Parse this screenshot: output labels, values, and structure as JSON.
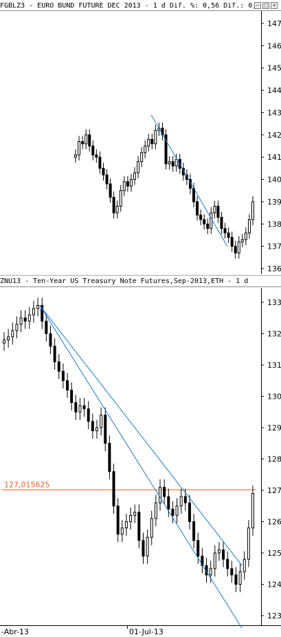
{
  "window": {
    "buttons": [
      "–",
      "□",
      "×"
    ]
  },
  "panes": [
    {
      "title": "FGBLZ3 - EURO BUND FUTURE  DEC 2013 -  1 d Dif. %: 0,56 Dif.: 0,",
      "y_ticks": [
        "147",
        "146",
        "145",
        "144",
        "143",
        "142",
        "141",
        "140",
        "139",
        "138",
        "137",
        "136"
      ],
      "line_colors": {
        "candle": "#000000",
        "trend": "#1f77c8"
      }
    },
    {
      "title": "ZNU13 - Ten-Year US Treasury Note Futures,Sep-2013,ETH -  1 d",
      "y_ticks": [
        "133",
        "132",
        "131",
        "130",
        "129",
        "128",
        "127",
        "126",
        "125",
        "124",
        "123"
      ],
      "hline_label": "127,015625",
      "hline_color": "#e8601c",
      "line_colors": {
        "candle": "#000000",
        "trend": "#1f77c8"
      }
    }
  ],
  "x_labels": [
    "-Abr-13",
    "01-Jul-13"
  ],
  "chart_data": [
    {
      "type": "candlestick",
      "title": "FGBLZ3 - EURO BUND FUTURE  DEC 2013 -  1 d Dif. %: 0,56 Dif.: 0,",
      "ylim": [
        136,
        147.4
      ],
      "ticks": [
        136,
        137,
        138,
        139,
        140,
        141,
        142,
        143,
        144,
        145,
        146,
        147
      ],
      "closes": [
        141.1,
        141.7,
        141.6,
        142.0,
        141.5,
        141.1,
        141.0,
        140.5,
        140.2,
        139.8,
        139.2,
        138.5,
        138.8,
        139.5,
        139.9,
        139.7,
        140.0,
        140.3,
        140.8,
        141.2,
        141.5,
        141.8,
        141.6,
        142.2,
        142.3,
        142.0,
        140.7,
        140.8,
        140.6,
        140.9,
        140.5,
        140.2,
        140.0,
        139.6,
        139.0,
        138.4,
        138.2,
        138.0,
        137.8,
        138.5,
        138.8,
        138.3,
        137.8,
        137.6,
        137.4,
        137.0,
        136.7,
        137.2,
        137.3,
        137.6,
        138.2,
        139.0
      ],
      "trendlines": [
        {
          "from": [
            142.9,
            0.46
          ],
          "to": [
            137.0,
            0.87
          ]
        }
      ]
    },
    {
      "type": "candlestick",
      "title": "ZNU13 - Ten-Year US Treasury Note Futures,Sep-2013,ETH -  1 d",
      "ylim": [
        122.6,
        133.4
      ],
      "ticks": [
        123,
        124,
        125,
        126,
        127,
        128,
        129,
        130,
        131,
        132,
        133
      ],
      "closes": [
        131.8,
        131.9,
        132.1,
        132.3,
        132.5,
        132.4,
        132.6,
        132.8,
        132.9,
        132.4,
        132.0,
        131.6,
        131.1,
        130.8,
        130.5,
        130.2,
        129.8,
        129.5,
        129.7,
        129.6,
        129.2,
        128.9,
        129.0,
        129.4,
        128.5,
        127.6,
        126.5,
        125.6,
        125.8,
        126.0,
        126.2,
        126.3,
        125.4,
        124.9,
        125.5,
        126.1,
        126.6,
        127.1,
        126.8,
        126.4,
        126.2,
        126.5,
        126.8,
        126.6,
        126.0,
        125.4,
        124.9,
        124.6,
        124.3,
        124.5,
        125.0,
        125.1,
        124.8,
        124.5,
        124.3,
        124.0,
        124.4,
        124.8,
        125.8,
        126.9
      ],
      "hline": 127.015625,
      "trendlines": [
        {
          "from": [
            132.9,
            0.125
          ],
          "to": [
            122.6,
            0.9
          ]
        },
        {
          "from": [
            132.9,
            0.125
          ],
          "to": [
            124.6,
            0.9
          ]
        }
      ]
    }
  ]
}
